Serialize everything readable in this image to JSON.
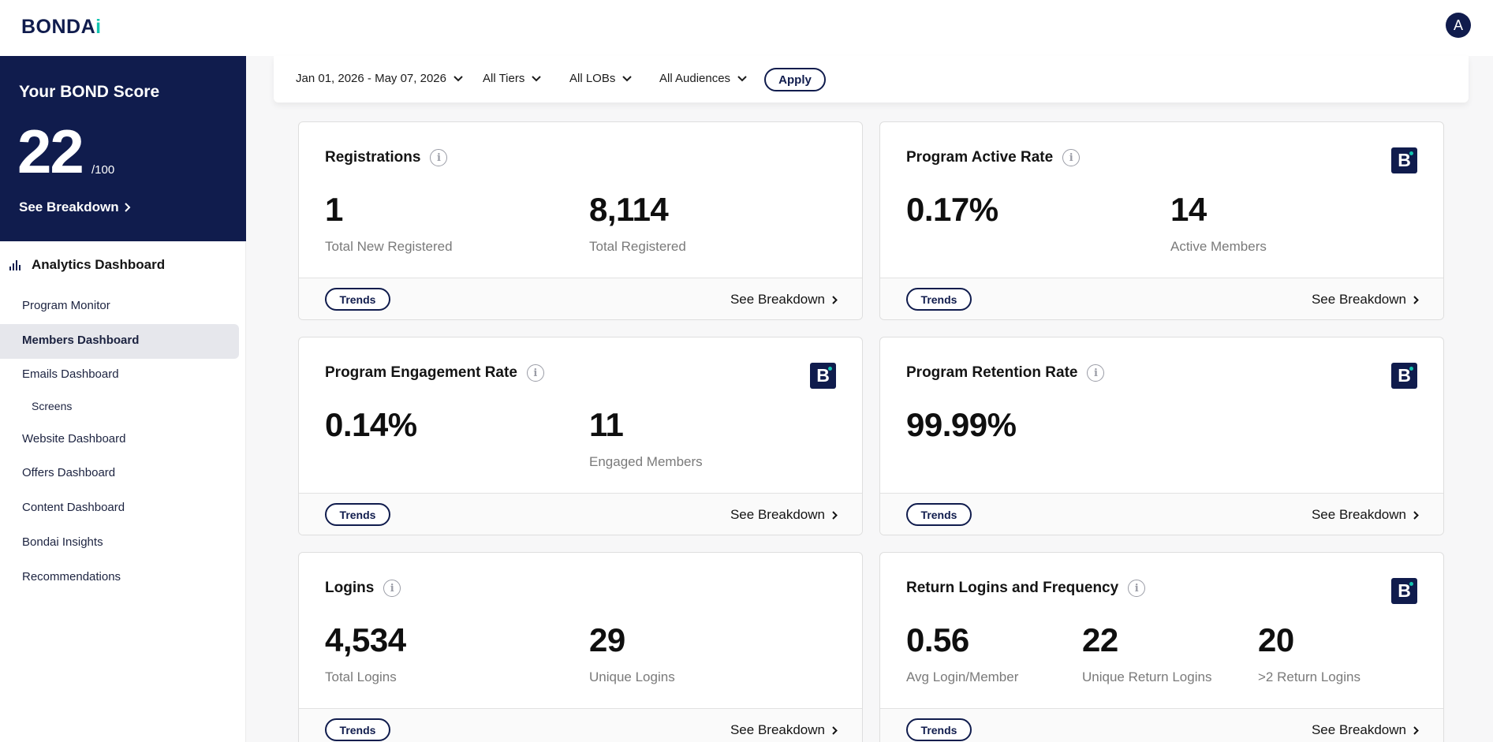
{
  "header": {
    "logo_text": "BONDA",
    "logo_accent": "i",
    "avatar_initial": "A"
  },
  "sidebar": {
    "score_title": "Your BOND Score",
    "score_value": "22",
    "score_max": "/100",
    "score_link": "See Breakdown",
    "nav_header": "Analytics Dashboard",
    "items": [
      {
        "label": "Program Monitor"
      },
      {
        "label": "Members Dashboard"
      },
      {
        "label": "Emails Dashboard"
      },
      {
        "label": "Screens"
      },
      {
        "label": "Website Dashboard"
      },
      {
        "label": "Offers Dashboard"
      },
      {
        "label": "Content Dashboard"
      },
      {
        "label": "Bondai Insights"
      },
      {
        "label": "Recommendations"
      }
    ]
  },
  "filters": {
    "date_range": "Jan 01, 2026 - May 07, 2026",
    "tiers": "All Tiers",
    "lobs": "All LOBs",
    "audiences": "All Audiences",
    "apply_label": "Apply"
  },
  "common": {
    "trends_label": "Trends",
    "breakdown_label": "See Breakdown",
    "info_glyph": "i",
    "badge_letter": "B"
  },
  "cards": [
    {
      "title": "Registrations",
      "metrics": [
        {
          "value": "1",
          "label": "Total New Registered"
        },
        {
          "value": "8,114",
          "label": "Total Registered"
        }
      ]
    },
    {
      "title": "Program Active Rate",
      "metrics": [
        {
          "value": "0.17%",
          "label": ""
        },
        {
          "value": "14",
          "label": "Active Members"
        }
      ]
    },
    {
      "title": "Program Engagement Rate",
      "metrics": [
        {
          "value": "0.14%",
          "label": ""
        },
        {
          "value": "11",
          "label": "Engaged Members"
        }
      ]
    },
    {
      "title": "Program Retention Rate",
      "metrics": [
        {
          "value": "99.99%",
          "label": ""
        }
      ]
    },
    {
      "title": "Logins",
      "metrics": [
        {
          "value": "4,534",
          "label": "Total Logins"
        },
        {
          "value": "29",
          "label": "Unique Logins"
        }
      ]
    },
    {
      "title": "Return Logins and Frequency",
      "metrics": [
        {
          "value": "0.56",
          "label": "Avg Login/Member"
        },
        {
          "value": "22",
          "label": "Unique Return Logins"
        },
        {
          "value": "20",
          "label": ">2 Return Logins"
        }
      ]
    }
  ]
}
